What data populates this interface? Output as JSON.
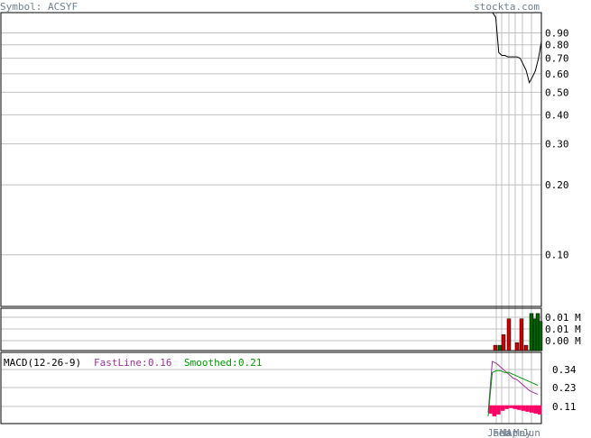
{
  "header": {
    "symbol_text": "Symbol: ACSYF",
    "brand_text": "stockta.com"
  },
  "colors": {
    "background": "#ffffff",
    "frame": "#000000",
    "grid": "#c0c0c0",
    "header_text": "#708090",
    "price_line": "#000000",
    "volume_up": "#006400",
    "volume_down": "#cc0000",
    "macd_fast": "#993399",
    "macd_slow": "#009900",
    "macd_histogram": "#ff0066"
  },
  "chart_data": [
    {
      "type": "line",
      "panel": "price",
      "scale": "log",
      "ylim": [
        0.06,
        1.1
      ],
      "y_ticks": [
        0.9,
        0.8,
        0.7,
        0.6,
        0.5,
        0.4,
        0.3,
        0.2,
        0.1
      ],
      "y_tick_labels": [
        "0.90",
        "0.80",
        "0.70",
        "0.60",
        "0.50",
        "0.40",
        "0.30",
        "0.20",
        "0.10"
      ],
      "x_labels": [
        "Jan",
        "Feb",
        "Mar",
        "Apr",
        "May",
        "Jun"
      ],
      "values": [
        1.5,
        1.05,
        0.74,
        0.72,
        0.72,
        0.71,
        0.71,
        0.71,
        0.71,
        0.7,
        0.66,
        0.62,
        0.55,
        0.58,
        0.62,
        0.7,
        0.83
      ]
    },
    {
      "type": "bar",
      "panel": "volume",
      "y_tick_labels": [
        "0.01 M",
        "0.01 M",
        "0.00 M"
      ],
      "series": [
        {
          "direction": "down",
          "values_m": [
            0.002,
            0.006,
            0.012,
            0.003,
            0.012,
            0.002
          ]
        },
        {
          "direction": "up",
          "values_m": [
            0.002,
            0.014,
            0.012,
            0.014,
            0.011
          ]
        }
      ]
    },
    {
      "type": "line",
      "panel": "macd",
      "title": "MACD(12-26-9)",
      "fastline_label": "FastLine:",
      "fastline_value": "0.16",
      "smoothed_label": "Smoothed:",
      "smoothed_value": "0.21",
      "y_tick_labels": [
        "0.34",
        "0.23",
        "0.11"
      ],
      "ylim": [
        0.0,
        0.39
      ],
      "series": [
        {
          "name": "FastLine",
          "values": [
            0.06,
            0.34,
            0.33,
            0.31,
            0.29,
            0.27,
            0.25,
            0.24,
            0.22,
            0.2,
            0.18,
            0.17,
            0.16
          ]
        },
        {
          "name": "Smoothed",
          "values": [
            0.04,
            0.28,
            0.29,
            0.29,
            0.28,
            0.28,
            0.27,
            0.26,
            0.25,
            0.24,
            0.23,
            0.22,
            0.21
          ]
        }
      ],
      "histogram": [
        0.045,
        0.06,
        0.05,
        0.03,
        0.02,
        0.015,
        0.02,
        0.025,
        0.03,
        0.035,
        0.04,
        0.045,
        0.05
      ]
    }
  ]
}
